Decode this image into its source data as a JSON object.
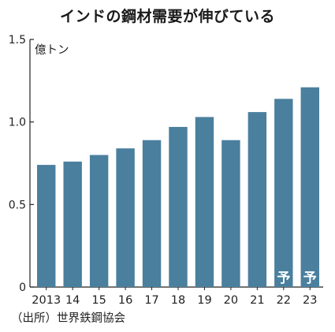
{
  "chart_data": {
    "type": "bar",
    "title": "インドの鋼材需要が伸びている",
    "unit_label": "億トン",
    "categories": [
      "2013",
      "14",
      "15",
      "16",
      "17",
      "18",
      "19",
      "20",
      "21",
      "22",
      "23"
    ],
    "values": [
      0.74,
      0.76,
      0.8,
      0.84,
      0.89,
      0.97,
      1.03,
      0.89,
      1.06,
      1.14,
      1.21
    ],
    "forecast_flags": [
      false,
      false,
      false,
      false,
      false,
      false,
      false,
      false,
      false,
      true,
      true
    ],
    "forecast_label": "予",
    "ylim": [
      0,
      1.5
    ],
    "yticks": [
      0,
      0.5,
      1.0,
      1.5
    ],
    "ytick_labels": [
      "0",
      "0.5",
      "1.0",
      "1.5"
    ],
    "grid": false,
    "legend": "none",
    "colors": {
      "bar": "#4a7f9e",
      "axis": "#222222",
      "text": "#222222"
    },
    "source": "（出所）世界鉄鋼協会"
  }
}
